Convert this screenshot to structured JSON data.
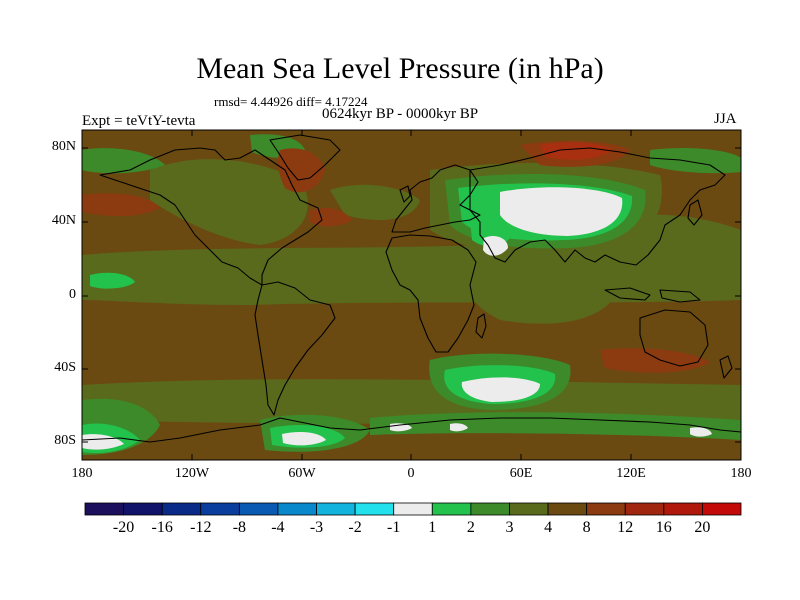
{
  "title": "Mean Sea Level Pressure (in hPa)",
  "stats": "rmsd= 4.44926 diff= 4.17224",
  "experiment": "Expt = teVtY-tevta",
  "period": "0624kyr BP - 0000kyr BP",
  "season": "JJA",
  "colors": {
    "base": "#6b4a12",
    "olive": "#5a6a1c",
    "green": "#3c8a2a",
    "bright_green": "#22c24c",
    "white": "#ececec",
    "rust": "#8c3a10",
    "red": "#a83010",
    "coast": "#000000"
  },
  "map": {
    "projection": "equirectangular",
    "lon_range": [
      -180,
      180
    ],
    "lat_range": [
      -90,
      90
    ],
    "y_ticks": [
      "80N",
      "40N",
      "0",
      "40S",
      "80S"
    ],
    "x_ticks": [
      "180",
      "120W",
      "60W",
      "0",
      "60E",
      "120E",
      "180"
    ]
  },
  "colorbar": {
    "colors": [
      "#1c0f5c",
      "#11136a",
      "#0a2a88",
      "#093e9e",
      "#0a5ab4",
      "#0a88cc",
      "#12b4de",
      "#22e0ec",
      "#ececec",
      "#22c24c",
      "#3c8a2a",
      "#5a6a1c",
      "#6b4a12",
      "#8c3a10",
      "#a0260e",
      "#b0180c",
      "#c40a08"
    ],
    "labels": [
      "-20",
      "-16",
      "-12",
      "-8",
      "-4",
      "-3",
      "-2",
      "-1",
      "1",
      "2",
      "3",
      "4",
      "8",
      "12",
      "16",
      "20"
    ]
  }
}
